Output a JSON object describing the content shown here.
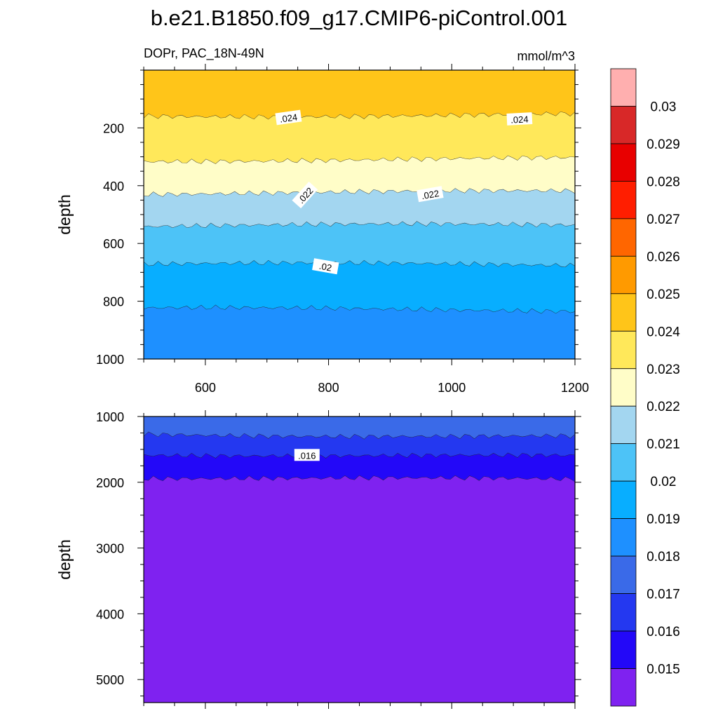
{
  "figure": {
    "title": "b.e21.B1850.f09_g17.CMIP6-piControl.001",
    "left_subtitle": "DOPr, PAC_18N-49N",
    "right_subtitle": "mmol/m^3"
  },
  "chart_data": [
    {
      "type": "heatmap",
      "panel": "upper",
      "ylabel": "depth",
      "xlabel": "",
      "x_range": [
        500,
        1200
      ],
      "x_ticks": [
        600,
        800,
        1000,
        1200
      ],
      "y_range": [
        0,
        1000
      ],
      "y_inverted": true,
      "y_ticks": [
        200,
        400,
        600,
        800,
        1000
      ],
      "bands": [
        {
          "from": 0,
          "to": 155,
          "color": "#FFC519"
        },
        {
          "from": 155,
          "to": 310,
          "color": "#FFE85A"
        },
        {
          "from": 310,
          "to": 425,
          "color": "#FFFDC8"
        },
        {
          "from": 425,
          "to": 540,
          "color": "#A3D6F0"
        },
        {
          "from": 540,
          "to": 675,
          "color": "#4DC3F7"
        },
        {
          "from": 675,
          "to": 830,
          "color": "#08AEFF"
        },
        {
          "from": 830,
          "to": 1000,
          "color": "#1E90FF"
        }
      ],
      "contour_labels": [
        {
          "text": ".024",
          "x": 735,
          "y": 165,
          "angle": -8
        },
        {
          "text": ".024",
          "x": 1110,
          "y": 170,
          "angle": -3
        },
        {
          "text": ".022",
          "x": 762,
          "y": 433,
          "angle": -48
        },
        {
          "text": ".022",
          "x": 965,
          "y": 430,
          "angle": -10
        },
        {
          "text": ".02",
          "x": 795,
          "y": 680,
          "angle": 10
        }
      ]
    },
    {
      "type": "heatmap",
      "panel": "lower",
      "ylabel": "depth",
      "xlabel": "",
      "x_range": [
        500,
        1200
      ],
      "x_ticks": [
        600,
        800,
        1000,
        1200
      ],
      "y_range": [
        1000,
        5350
      ],
      "y_inverted": true,
      "y_ticks": [
        1000,
        2000,
        3000,
        4000,
        5000
      ],
      "bands": [
        {
          "from": 1000,
          "to": 1250,
          "color": "#3A6AE8"
        },
        {
          "from": 1250,
          "to": 1560,
          "color": "#2438F0"
        },
        {
          "from": 1560,
          "to": 1920,
          "color": "#2308F8"
        },
        {
          "from": 1920,
          "to": 5350,
          "color": "#7F22F0"
        }
      ],
      "contour_labels": [
        {
          "text": ".016",
          "x": 765,
          "y": 1590,
          "angle": 0
        }
      ]
    }
  ],
  "colorbar": {
    "levels": [
      "0.03",
      "0.029",
      "0.028",
      "0.027",
      "0.026",
      "0.025",
      "0.024",
      "0.023",
      "0.022",
      "0.021",
      "0.02",
      "0.019",
      "0.018",
      "0.017",
      "0.016",
      "0.015"
    ],
    "colors": [
      "#FFAFAF",
      "#D82828",
      "#E80000",
      "#FF1E00",
      "#FF6600",
      "#FF9A00",
      "#FFC519",
      "#FFE85A",
      "#FFFDC8",
      "#A3D6F0",
      "#4DC3F7",
      "#08AEFF",
      "#1E90FF",
      "#3A6AE8",
      "#2438F0",
      "#2308F8",
      "#7F22F0"
    ]
  }
}
